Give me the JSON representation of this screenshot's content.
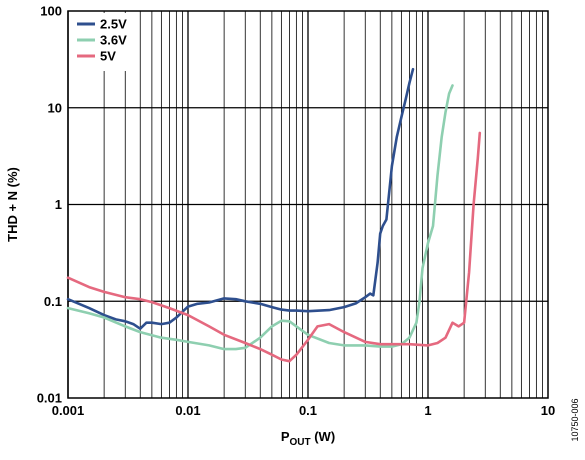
{
  "chart_data": {
    "type": "line",
    "title": "",
    "xlabel": "P",
    "xlabel_sub": "OUT",
    "xlabel_unit": " (W)",
    "ylabel": "THD + N (%)",
    "x_scale": "log",
    "y_scale": "log",
    "xlim": [
      0.001,
      10
    ],
    "ylim": [
      0.01,
      100
    ],
    "x_ticks": [
      0.001,
      0.01,
      0.1,
      1,
      10
    ],
    "x_tick_labels": [
      "0.001",
      "0.01",
      "0.1",
      "1",
      "10"
    ],
    "y_ticks": [
      0.01,
      0.1,
      1,
      10,
      100
    ],
    "y_tick_labels": [
      "0.01",
      "0.1",
      "1",
      "10",
      "100"
    ],
    "grid": true,
    "legend_position": "top-left",
    "figure_id": "10750-006",
    "series": [
      {
        "name": "2.5V",
        "color": "#2e4f8e",
        "points": [
          [
            0.001,
            0.105
          ],
          [
            0.0015,
            0.085
          ],
          [
            0.002,
            0.072
          ],
          [
            0.0025,
            0.065
          ],
          [
            0.003,
            0.062
          ],
          [
            0.0035,
            0.058
          ],
          [
            0.004,
            0.052
          ],
          [
            0.0045,
            0.06
          ],
          [
            0.005,
            0.06
          ],
          [
            0.006,
            0.058
          ],
          [
            0.007,
            0.06
          ],
          [
            0.008,
            0.068
          ],
          [
            0.009,
            0.078
          ],
          [
            0.01,
            0.088
          ],
          [
            0.012,
            0.094
          ],
          [
            0.015,
            0.097
          ],
          [
            0.02,
            0.107
          ],
          [
            0.025,
            0.105
          ],
          [
            0.03,
            0.1
          ],
          [
            0.04,
            0.094
          ],
          [
            0.05,
            0.087
          ],
          [
            0.06,
            0.082
          ],
          [
            0.07,
            0.08
          ],
          [
            0.08,
            0.08
          ],
          [
            0.1,
            0.079
          ],
          [
            0.15,
            0.081
          ],
          [
            0.2,
            0.087
          ],
          [
            0.25,
            0.095
          ],
          [
            0.3,
            0.11
          ],
          [
            0.33,
            0.12
          ],
          [
            0.35,
            0.115
          ],
          [
            0.38,
            0.25
          ],
          [
            0.4,
            0.5
          ],
          [
            0.42,
            0.6
          ],
          [
            0.45,
            0.7
          ],
          [
            0.48,
            1.5
          ],
          [
            0.5,
            2.5
          ],
          [
            0.55,
            5
          ],
          [
            0.6,
            8
          ],
          [
            0.65,
            12
          ],
          [
            0.7,
            18
          ],
          [
            0.75,
            25
          ]
        ]
      },
      {
        "name": "3.6V",
        "color": "#8ecfb0",
        "points": [
          [
            0.001,
            0.085
          ],
          [
            0.0015,
            0.075
          ],
          [
            0.002,
            0.068
          ],
          [
            0.003,
            0.055
          ],
          [
            0.004,
            0.048
          ],
          [
            0.006,
            0.042
          ],
          [
            0.008,
            0.04
          ],
          [
            0.01,
            0.038
          ],
          [
            0.015,
            0.035
          ],
          [
            0.02,
            0.032
          ],
          [
            0.025,
            0.032
          ],
          [
            0.03,
            0.033
          ],
          [
            0.04,
            0.042
          ],
          [
            0.05,
            0.055
          ],
          [
            0.06,
            0.063
          ],
          [
            0.07,
            0.062
          ],
          [
            0.08,
            0.055
          ],
          [
            0.1,
            0.045
          ],
          [
            0.15,
            0.037
          ],
          [
            0.2,
            0.035
          ],
          [
            0.3,
            0.035
          ],
          [
            0.4,
            0.034
          ],
          [
            0.5,
            0.034
          ],
          [
            0.6,
            0.036
          ],
          [
            0.7,
            0.042
          ],
          [
            0.8,
            0.06
          ],
          [
            0.85,
            0.1
          ],
          [
            0.9,
            0.22
          ],
          [
            1.0,
            0.4
          ],
          [
            1.1,
            0.6
          ],
          [
            1.2,
            2
          ],
          [
            1.3,
            5
          ],
          [
            1.4,
            9
          ],
          [
            1.5,
            14
          ],
          [
            1.6,
            17
          ]
        ]
      },
      {
        "name": "5V",
        "color": "#e5697f",
        "points": [
          [
            0.001,
            0.175
          ],
          [
            0.0015,
            0.14
          ],
          [
            0.002,
            0.125
          ],
          [
            0.003,
            0.11
          ],
          [
            0.004,
            0.105
          ],
          [
            0.005,
            0.098
          ],
          [
            0.007,
            0.085
          ],
          [
            0.01,
            0.072
          ],
          [
            0.015,
            0.055
          ],
          [
            0.02,
            0.045
          ],
          [
            0.03,
            0.037
          ],
          [
            0.04,
            0.032
          ],
          [
            0.05,
            0.028
          ],
          [
            0.06,
            0.025
          ],
          [
            0.07,
            0.024
          ],
          [
            0.08,
            0.028
          ],
          [
            0.1,
            0.04
          ],
          [
            0.12,
            0.055
          ],
          [
            0.15,
            0.058
          ],
          [
            0.2,
            0.048
          ],
          [
            0.3,
            0.038
          ],
          [
            0.4,
            0.036
          ],
          [
            0.5,
            0.036
          ],
          [
            0.7,
            0.036
          ],
          [
            1.0,
            0.035
          ],
          [
            1.2,
            0.037
          ],
          [
            1.4,
            0.042
          ],
          [
            1.6,
            0.06
          ],
          [
            1.8,
            0.055
          ],
          [
            2.0,
            0.06
          ],
          [
            2.2,
            0.2
          ],
          [
            2.4,
            1
          ],
          [
            2.6,
            3
          ],
          [
            2.7,
            5.5
          ]
        ]
      }
    ]
  }
}
